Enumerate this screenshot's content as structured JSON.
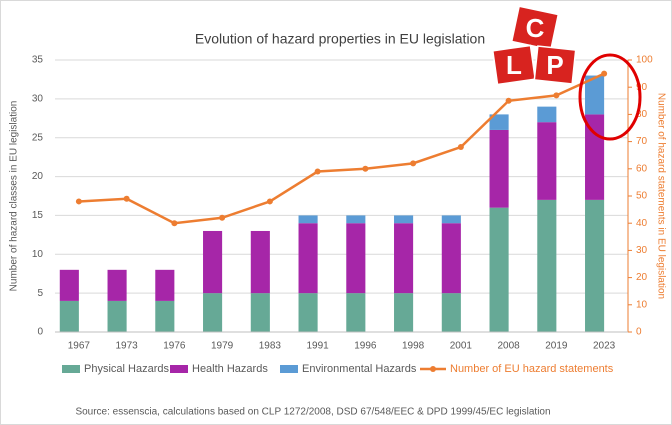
{
  "chart_data": {
    "type": "bar",
    "title": "Evolution of hazard properties in EU legislation",
    "y_label": "Number of hazard classes in EU legislation",
    "y2_label": "Number of hazard statements in EU legislation",
    "source": "Source: essenscia, calculations based on CLP 1272/2008, DSD 67/548/EEC  & DPD 1999/45/EC legislation",
    "categories": [
      "1967",
      "1973",
      "1976",
      "1979",
      "1983",
      "1991",
      "1996",
      "1998",
      "2001",
      "2008",
      "2019",
      "2023"
    ],
    "series": [
      {
        "name": "Physical Hazards",
        "type": "bar",
        "color": "#66a996",
        "values": [
          4,
          4,
          4,
          5,
          5,
          5,
          5,
          5,
          5,
          16,
          17,
          17
        ]
      },
      {
        "name": "Health Hazards",
        "type": "bar",
        "color": "#a626a8",
        "values": [
          4,
          4,
          4,
          8,
          8,
          9,
          9,
          9,
          9,
          10,
          10,
          11
        ]
      },
      {
        "name": "Environmental Hazards",
        "type": "bar",
        "color": "#5b9bd5",
        "values": [
          0,
          0,
          0,
          0,
          0,
          1,
          1,
          1,
          1,
          2,
          2,
          5
        ]
      },
      {
        "name": "Number of EU hazard statements",
        "type": "line",
        "axis": "y2",
        "color": "#ed7d31",
        "values": [
          48,
          49,
          40,
          42,
          48,
          59,
          60,
          62,
          68,
          85,
          87,
          95
        ]
      }
    ],
    "ylim": [
      0,
      35
    ],
    "yticks": [
      0,
      5,
      10,
      15,
      20,
      25,
      30,
      35
    ],
    "y2lim": [
      0,
      100
    ],
    "y2ticks": [
      0,
      10,
      20,
      30,
      40,
      50,
      60,
      70,
      80,
      90,
      100
    ],
    "grid": true,
    "logo_letters": [
      "C",
      "L",
      "P"
    ]
  }
}
